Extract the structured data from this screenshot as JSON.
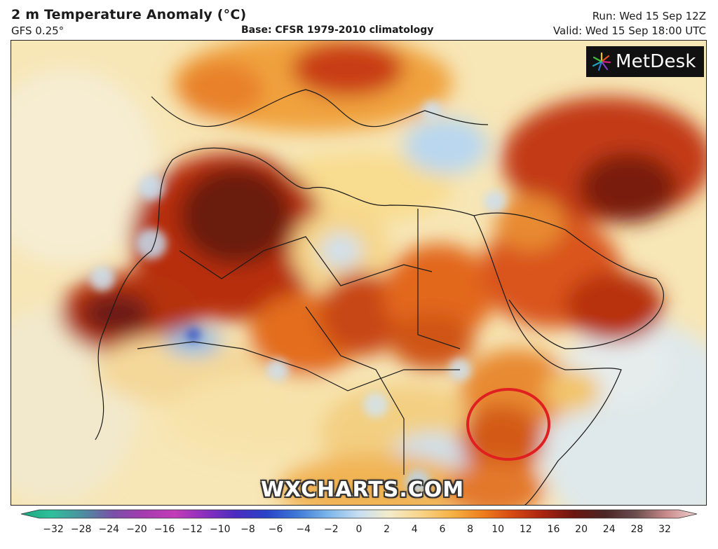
{
  "header": {
    "title": "2 m Temperature Anomaly (°C)",
    "model": "GFS 0.25°",
    "base": "Base: CFSR 1979-2010 climatology",
    "run": "Run: Wed 15 Sep 12Z",
    "valid": "Valid: Wed 15 Sep 18:00 UTC"
  },
  "logo": {
    "text": "MetDesk",
    "icon": "metdesk-star-icon"
  },
  "watermark": "WXCHARTS.COM",
  "colorbar": {
    "ticks": [
      "−32",
      "−28",
      "−24",
      "−20",
      "−16",
      "−12",
      "−10",
      "−8",
      "−6",
      "−4",
      "−2",
      "0",
      "2",
      "4",
      "6",
      "8",
      "10",
      "12",
      "16",
      "20",
      "24",
      "28",
      "32"
    ],
    "colors": [
      "#1aa87f",
      "#2fbf9b",
      "#4c8fa0",
      "#7a4fa8",
      "#a63bb0",
      "#c33cb8",
      "#8a2fbf",
      "#4a2cc0",
      "#2844c8",
      "#3f7ad8",
      "#7cb6ea",
      "#c8def2",
      "#f4ecc9",
      "#f8d489",
      "#f6b346",
      "#ef7f1e",
      "#d64912",
      "#a82310",
      "#6b160f",
      "#4a2525",
      "#6a4d4d",
      "#c98a8a",
      "#f0d0d0"
    ]
  },
  "annotation": {
    "type": "red-circle",
    "region": "Somalia / Kenya border"
  }
}
